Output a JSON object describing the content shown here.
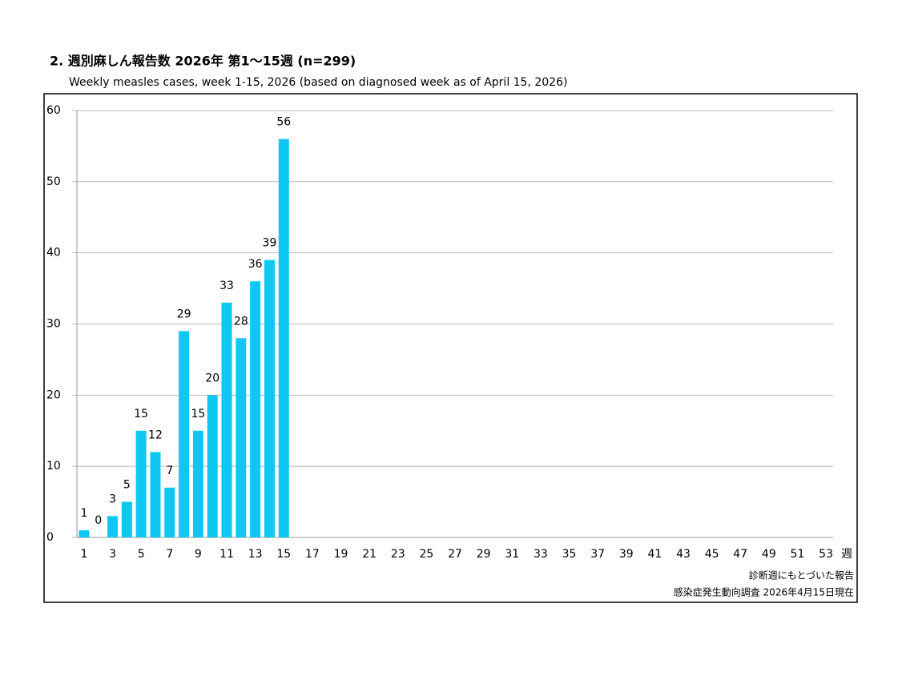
{
  "chart_data": {
    "type": "bar",
    "title": "2. 週別麻しん報告数  2026年 第1～15週 (n=299)",
    "subtitle": "Weekly measles cases, week 1-15, 2026 (based on diagnosed week as of April 15, 2026)",
    "x_label": "週",
    "notes": [
      "診断週にもとづいた報告",
      "感染症発生動向調査 2026年4月15日現在"
    ],
    "categories": [
      "1",
      null,
      "3",
      null,
      "5",
      null,
      "7",
      null,
      "9",
      null,
      "11",
      null,
      "13",
      null,
      "15",
      null,
      "17",
      null,
      "19",
      null,
      "21",
      null,
      "23",
      null,
      "25",
      null,
      "27",
      null,
      "29",
      null,
      "31",
      null,
      "33",
      null,
      "35",
      null,
      "37",
      null,
      "39",
      null,
      "41",
      null,
      "43",
      null,
      "45",
      null,
      "47",
      null,
      "49",
      null,
      "51",
      null,
      "53"
    ],
    "values": [
      1,
      0,
      3,
      5,
      15,
      12,
      7,
      29,
      15,
      20,
      33,
      28,
      36,
      39,
      56,
      null,
      null,
      null,
      null,
      null,
      null,
      null,
      null,
      null,
      null,
      null,
      null,
      null,
      null,
      null,
      null,
      null,
      null,
      null,
      null,
      null,
      null,
      null,
      null,
      null,
      null,
      null,
      null,
      null,
      null,
      null,
      null,
      null,
      null,
      null,
      null,
      null,
      null
    ],
    "color": "#0fc8f2",
    "ylim": [
      0,
      60
    ],
    "yticks": [
      0,
      10,
      20,
      30,
      40,
      50,
      60
    ],
    "grid": true
  }
}
